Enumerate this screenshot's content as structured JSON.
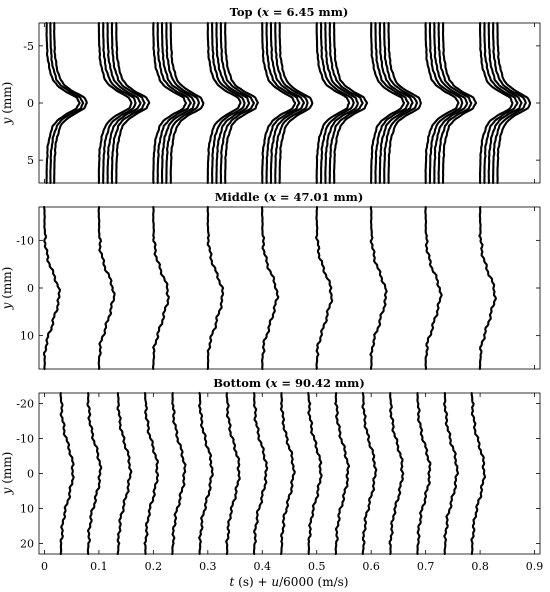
{
  "chart_data": [
    {
      "type": "line",
      "panel": "top",
      "title_prefix": "Top (",
      "title_var": "x",
      "title_suffix": " = 6.45 mm)",
      "ylabel_var": "y",
      "ylabel_unit": " (mm)",
      "xlim": [
        -0.01,
        0.91
      ],
      "ylim": [
        -7,
        7
      ],
      "yticks": [
        -5,
        0,
        5
      ],
      "y_inverted": true,
      "profile": {
        "y": [
          -7,
          -6,
          -5,
          -4,
          -3,
          -2,
          -1.5,
          -1,
          -0.5,
          0,
          0.5,
          1,
          1.5,
          2,
          3,
          4,
          5,
          6,
          7
        ],
        "u": [
          0,
          0,
          4,
          10,
          30,
          70,
          120,
          210,
          330,
          360,
          330,
          210,
          120,
          70,
          30,
          10,
          4,
          0,
          0
        ]
      },
      "columns": [
        {
          "t": 0.0,
          "curves": [
            0.004,
            0.011,
            0.018
          ]
        },
        {
          "t": 0.1,
          "curves": [
            0.0,
            0.008,
            0.016,
            0.024,
            0.032
          ]
        },
        {
          "t": 0.2,
          "curves": [
            0.0,
            0.008,
            0.016,
            0.024,
            0.032
          ]
        },
        {
          "t": 0.3,
          "curves": [
            0.0,
            0.008,
            0.016,
            0.024,
            0.032
          ]
        },
        {
          "t": 0.4,
          "curves": [
            0.0,
            0.008,
            0.016,
            0.024,
            0.032
          ]
        },
        {
          "t": 0.5,
          "curves": [
            0.0,
            0.008,
            0.016,
            0.024,
            0.032
          ]
        },
        {
          "t": 0.6,
          "curves": [
            0.0,
            0.008,
            0.016,
            0.024,
            0.032
          ]
        },
        {
          "t": 0.7,
          "curves": [
            0.0,
            0.008,
            0.016,
            0.024,
            0.032
          ]
        },
        {
          "t": 0.8,
          "curves": [
            0.0,
            0.008,
            0.016,
            0.024,
            0.032
          ]
        }
      ]
    },
    {
      "type": "line",
      "panel": "middle",
      "title_prefix": "Middle (",
      "title_var": "x",
      "title_suffix": " = 47.01 mm)",
      "ylabel_var": "y",
      "ylabel_unit": " (mm)",
      "xlim": [
        -0.01,
        0.91
      ],
      "ylim": [
        -17,
        17
      ],
      "yticks": [
        -10,
        0,
        10
      ],
      "y_inverted": true,
      "profile": {
        "y": [
          -17,
          -15,
          -12,
          -10,
          -8,
          -6,
          -4,
          -2,
          0,
          2,
          4,
          6,
          8,
          10,
          12,
          15,
          17
        ],
        "u": [
          0,
          0,
          3,
          8,
          18,
          40,
          75,
          120,
          155,
          165,
          140,
          110,
          80,
          45,
          15,
          2,
          0
        ]
      },
      "columns": [
        {
          "t": 0.0,
          "curves": [
            0.0
          ]
        },
        {
          "t": 0.1,
          "curves": [
            0.0
          ]
        },
        {
          "t": 0.2,
          "curves": [
            0.0
          ]
        },
        {
          "t": 0.3,
          "curves": [
            0.0
          ]
        },
        {
          "t": 0.4,
          "curves": [
            0.0
          ]
        },
        {
          "t": 0.5,
          "curves": [
            0.0
          ]
        },
        {
          "t": 0.6,
          "curves": [
            0.0
          ]
        },
        {
          "t": 0.7,
          "curves": [
            0.0
          ]
        },
        {
          "t": 0.8,
          "curves": [
            0.0
          ]
        }
      ]
    },
    {
      "type": "line",
      "panel": "bottom",
      "title_prefix": "Bottom (",
      "title_var": "x",
      "title_suffix": " = 90.42 mm)",
      "ylabel_var": "y",
      "ylabel_unit": " (mm)",
      "xlabel_var1": "t",
      "xlabel_mid": " (s) + ",
      "xlabel_var2": "u",
      "xlabel_end": "/6000 (m/s)",
      "xlim": [
        -0.01,
        0.91
      ],
      "ylim": [
        -23,
        23
      ],
      "yticks": [
        -20,
        -10,
        0,
        10,
        20
      ],
      "xticks": [
        0,
        0.1,
        0.2,
        0.3,
        0.4,
        0.5,
        0.6,
        0.7,
        0.8,
        0.9
      ],
      "y_inverted": true,
      "profile": {
        "y": [
          -23,
          -20,
          -16,
          -12,
          -9,
          -6,
          -3,
          0,
          3,
          6,
          9,
          12,
          16,
          20,
          23
        ],
        "u": [
          0,
          5,
          15,
          40,
          70,
          105,
          130,
          135,
          120,
          95,
          65,
          35,
          15,
          5,
          0
        ]
      },
      "columns": [
        {
          "t": 0.03,
          "curves": [
            0.0
          ]
        },
        {
          "t": 0.08,
          "curves": [
            0.0
          ]
        },
        {
          "t": 0.135,
          "curves": [
            0.0
          ]
        },
        {
          "t": 0.185,
          "curves": [
            0.0
          ]
        },
        {
          "t": 0.235,
          "curves": [
            0.0
          ]
        },
        {
          "t": 0.285,
          "curves": [
            0.0
          ]
        },
        {
          "t": 0.335,
          "curves": [
            0.0
          ]
        },
        {
          "t": 0.385,
          "curves": [
            0.0
          ]
        },
        {
          "t": 0.435,
          "curves": [
            0.0
          ]
        },
        {
          "t": 0.485,
          "curves": [
            0.0
          ]
        },
        {
          "t": 0.535,
          "curves": [
            0.0
          ]
        },
        {
          "t": 0.585,
          "curves": [
            0.0
          ]
        },
        {
          "t": 0.635,
          "curves": [
            0.0
          ]
        },
        {
          "t": 0.685,
          "curves": [
            0.0
          ]
        },
        {
          "t": 0.735,
          "curves": [
            0.0
          ]
        },
        {
          "t": 0.785,
          "curves": [
            0.0
          ]
        }
      ]
    }
  ]
}
